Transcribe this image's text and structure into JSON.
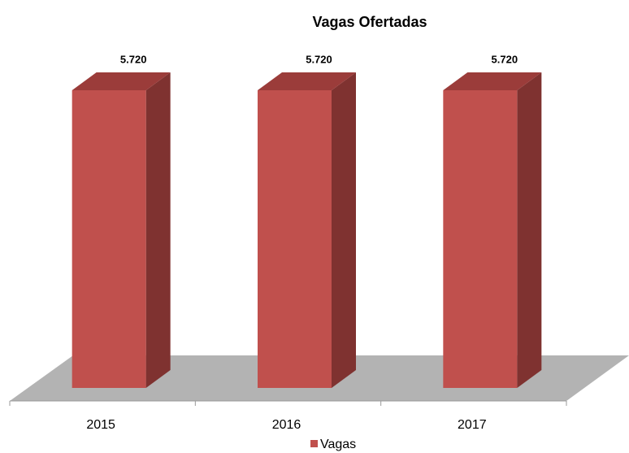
{
  "chart_data": {
    "type": "bar3d",
    "title": "Vagas Ofertadas",
    "categories": [
      "2015",
      "2016",
      "2017"
    ],
    "series": [
      {
        "name": "Vagas",
        "color": "#c0504d",
        "values": [
          5720,
          5720,
          5720
        ],
        "value_labels": [
          "5.720",
          "5.720",
          "5.720"
        ]
      }
    ]
  }
}
